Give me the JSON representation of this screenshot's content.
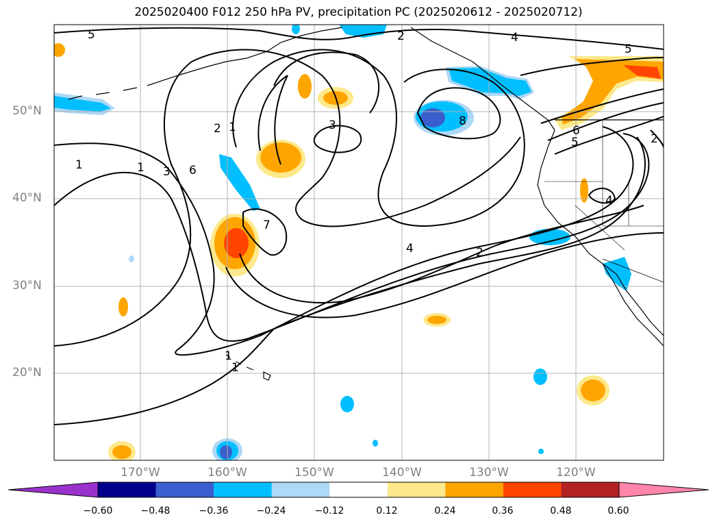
{
  "title": "2025020400 F012 250 hPa PV, precipitation PC (2025020612 - 2025020712)",
  "map": {
    "projection": "equirectangular",
    "extent_lon": [
      -180,
      -110
    ],
    "extent_lat": [
      10,
      60
    ],
    "lat_labels": [
      "50°N",
      "40°N",
      "30°N",
      "20°N"
    ],
    "lat_values": [
      50,
      40,
      30,
      20
    ],
    "lon_labels": [
      "170°W",
      "160°W",
      "150°W",
      "140°W",
      "130°W",
      "120°W"
    ],
    "lon_values": [
      -170,
      -160,
      -150,
      -140,
      -130,
      -120
    ],
    "gridline_color": "#b0b0b0",
    "coastline_color": "#000000"
  },
  "pv_contours": {
    "color": "#000000",
    "labels": [
      "5",
      "2",
      "4",
      "5",
      "1",
      "1",
      "3",
      "6",
      "2",
      "1",
      "3",
      "8",
      "6",
      "5",
      "2",
      "4",
      "7",
      "4",
      "2",
      "1",
      "1"
    ]
  },
  "precip_anomaly": {
    "positive_colors": [
      "#fde98b",
      "#ffa500",
      "#ff4500"
    ],
    "negative_colors": [
      "#add8f6",
      "#00bfff",
      "#3a5fcd"
    ]
  },
  "colorbar": {
    "tick_labels": [
      "−0.60",
      "−0.48",
      "−0.36",
      "−0.24",
      "−0.12",
      "0.12",
      "0.24",
      "0.36",
      "0.48",
      "0.60"
    ],
    "bins": [
      {
        "color": "#9932cc"
      },
      {
        "color": "#00008b"
      },
      {
        "color": "#3a5fcd"
      },
      {
        "color": "#00bfff"
      },
      {
        "color": "#add8f6"
      },
      {
        "color": "#ffffff"
      },
      {
        "color": "#fde98b"
      },
      {
        "color": "#ffa500"
      },
      {
        "color": "#ff4500"
      },
      {
        "color": "#b22222"
      },
      {
        "color": "#ff85aa"
      }
    ],
    "extend": "both"
  }
}
